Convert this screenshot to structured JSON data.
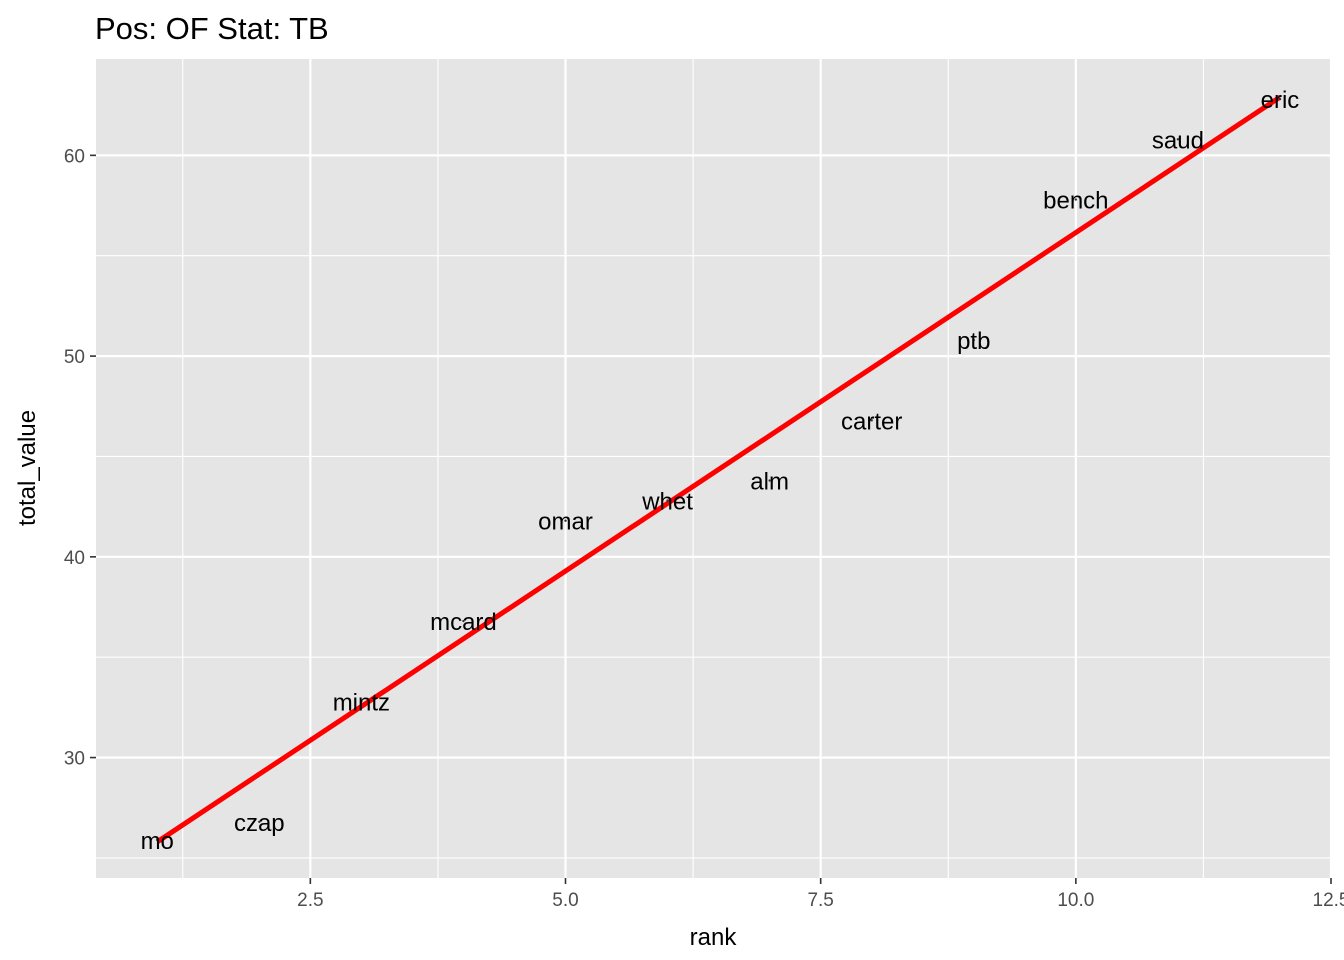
{
  "chart_data": {
    "type": "scatter",
    "title": "Pos: OF Stat: TB",
    "xlabel": "rank",
    "ylabel": "total_value",
    "xlim": [
      0.4,
      12.5
    ],
    "ylim": [
      24.0,
      64.8
    ],
    "x_ticks": [
      {
        "value": 2.5,
        "label": "2.5"
      },
      {
        "value": 5.0,
        "label": "5.0"
      },
      {
        "value": 7.5,
        "label": "7.5"
      },
      {
        "value": 10.0,
        "label": "10.0"
      },
      {
        "value": 12.5,
        "label": "12.5"
      }
    ],
    "y_ticks": [
      {
        "value": 30,
        "label": "30"
      },
      {
        "value": 40,
        "label": "40"
      },
      {
        "value": 50,
        "label": "50"
      },
      {
        "value": 60,
        "label": "60"
      }
    ],
    "grid": true,
    "background": "#e5e5e5",
    "grid_color": "#ffffff",
    "points": [
      {
        "label": "mo",
        "x": 1,
        "y": 25.9
      },
      {
        "label": "czap",
        "x": 2,
        "y": 26.8
      },
      {
        "label": "mintz",
        "x": 3,
        "y": 32.8
      },
      {
        "label": "mcard",
        "x": 4,
        "y": 36.8
      },
      {
        "label": "omar",
        "x": 5,
        "y": 41.8
      },
      {
        "label": "whet",
        "x": 6,
        "y": 42.8
      },
      {
        "label": "alm",
        "x": 7,
        "y": 43.8
      },
      {
        "label": "carter",
        "x": 8,
        "y": 46.8
      },
      {
        "label": "ptb",
        "x": 9,
        "y": 50.8
      },
      {
        "label": "bench",
        "x": 10,
        "y": 57.8
      },
      {
        "label": "saud",
        "x": 11,
        "y": 60.8
      },
      {
        "label": "eric",
        "x": 12,
        "y": 62.8
      }
    ],
    "fit_line": {
      "x": [
        1,
        12
      ],
      "y": [
        25.8,
        62.9
      ],
      "color": "#ff0000"
    }
  }
}
